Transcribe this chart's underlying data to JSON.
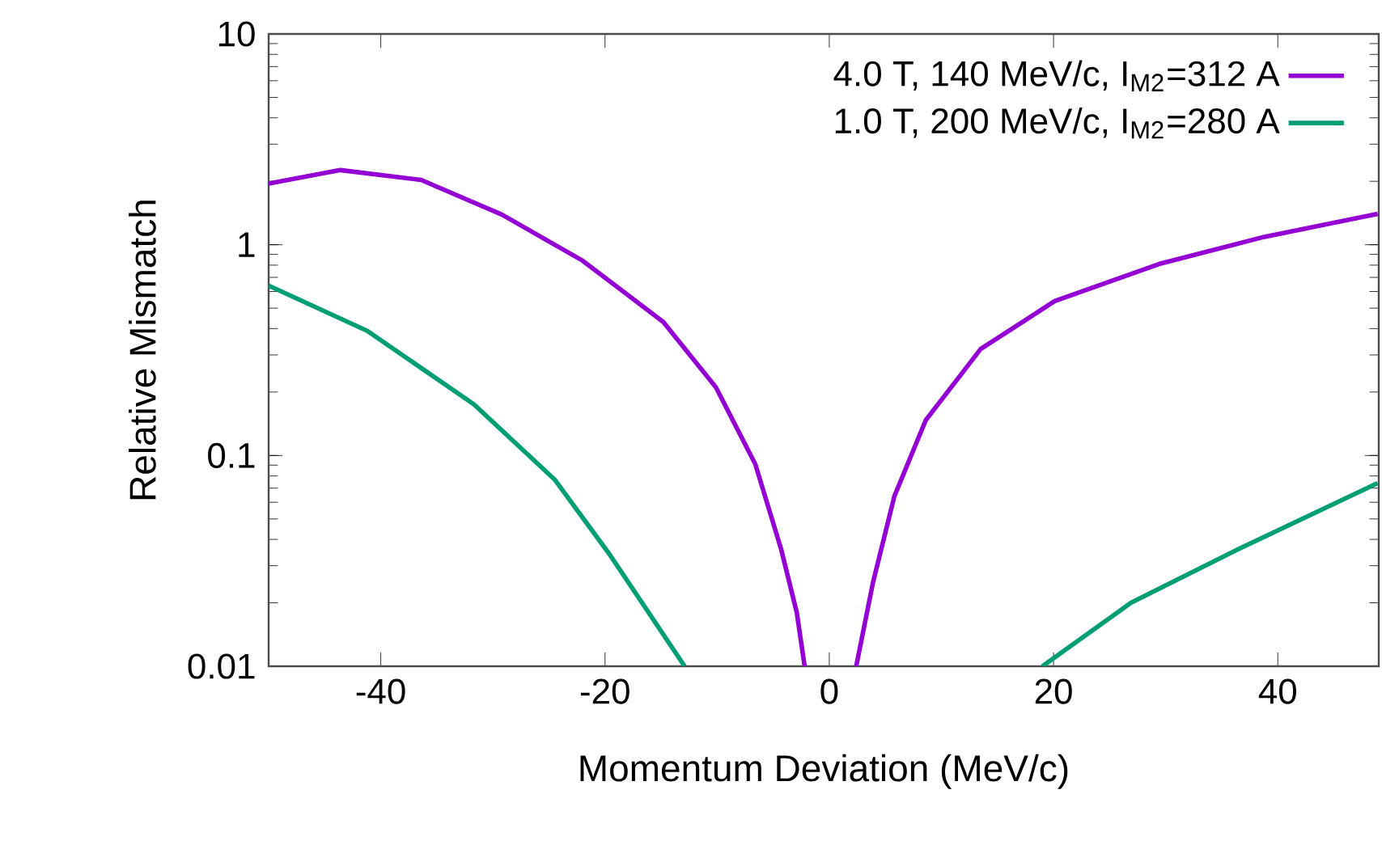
{
  "chart_data": {
    "type": "line",
    "xlabel": "Momentum Deviation (MeV/c)",
    "ylabel": "Relative Mismatch",
    "log": "y",
    "legend": "top right",
    "xlim": [
      -50,
      49
    ],
    "xticks": [
      -40,
      -20,
      0,
      20,
      40
    ],
    "ylim": [
      0.01,
      10
    ],
    "yticks": [
      0.01,
      0.1,
      1,
      10
    ],
    "series": [
      {
        "name": "4.0 T, 140 MeV/c, I$_{M2}$=312 A",
        "color": "#9400d3",
        "x": [
          -50,
          -43.6,
          -36.4,
          -29.2,
          -22.0,
          -14.8,
          -10.1,
          -6.6,
          -4.3,
          -2.9,
          -2.2,
          null,
          2.4,
          3.9,
          5.8,
          8.6,
          13.5,
          20.1,
          29.4,
          38.8,
          48.9
        ],
        "values": [
          1.95,
          2.26,
          2.03,
          1.39,
          0.84,
          0.43,
          0.21,
          0.091,
          0.036,
          0.018,
          0.01,
          null,
          0.01,
          0.025,
          0.064,
          0.147,
          0.32,
          0.54,
          0.81,
          1.09,
          1.4
        ]
      },
      {
        "name": "1.0 T, 200 MeV/c, I$_{M2}$=280 A",
        "color": "#009e73",
        "x": [
          -50,
          -41.2,
          -31.7,
          -24.5,
          -19.6,
          -12.9,
          null,
          19.0,
          26.9,
          36.5,
          48.9
        ],
        "values": [
          0.64,
          0.39,
          0.175,
          0.077,
          0.034,
          0.01,
          null,
          0.01,
          0.02,
          0.036,
          0.074
        ]
      }
    ]
  }
}
